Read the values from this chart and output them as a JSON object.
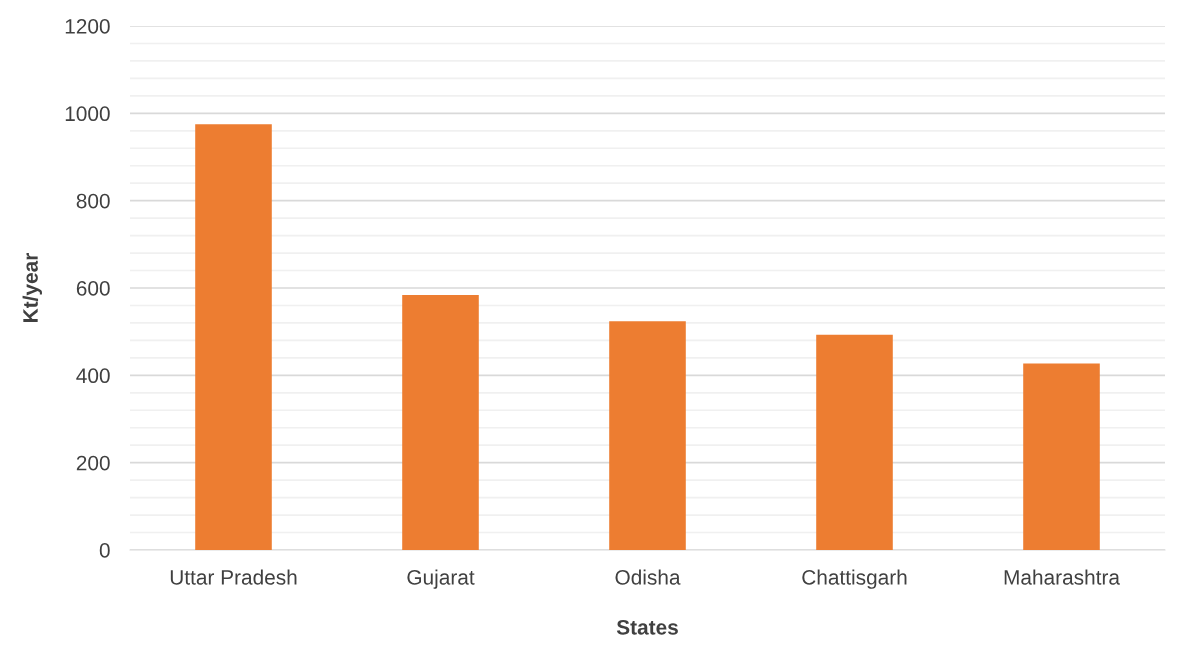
{
  "chart_data": {
    "type": "bar",
    "xlabel": "States",
    "ylabel": "Kt/year",
    "categories": [
      "Uttar Pradesh",
      "Gujarat",
      "Odisha",
      "Chattisgarh",
      "Maharashtra"
    ],
    "values": [
      975,
      584,
      524,
      493,
      427
    ],
    "color": "#ed7d31",
    "ylim": [
      0,
      1200
    ],
    "yticks": [
      0,
      200,
      400,
      600,
      800,
      1000,
      1200
    ],
    "grid": "y"
  }
}
